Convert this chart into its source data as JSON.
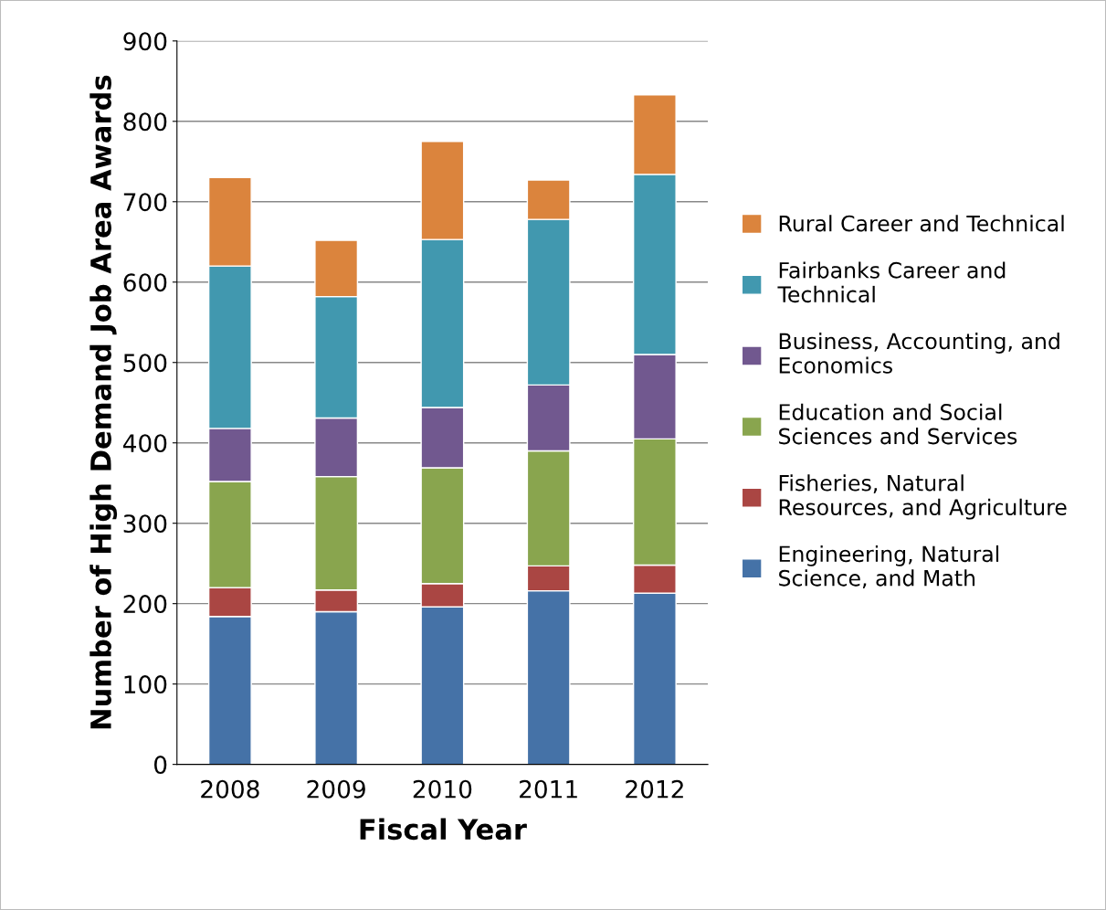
{
  "chart_data": {
    "type": "bar",
    "stacked": true,
    "xlabel": "Fiscal Year",
    "ylabel": "Number of High Demand Job Area Awards",
    "categories": [
      "2008",
      "2009",
      "2010",
      "2011",
      "2012"
    ],
    "series": [
      {
        "name": "Engineering, Natural\nScience, and Math",
        "color": "#4572a7",
        "values": [
          184,
          190,
          196,
          216,
          213
        ]
      },
      {
        "name": "Fisheries, Natural\nResources, and Agriculture",
        "color": "#aa4643",
        "values": [
          36,
          27,
          29,
          31,
          35
        ]
      },
      {
        "name": "Education and Social\nSciences and Services",
        "color": "#89a54e",
        "values": [
          132,
          141,
          144,
          143,
          157
        ]
      },
      {
        "name": "Business, Accounting, and\nEconomics",
        "color": "#71588f",
        "values": [
          66,
          73,
          75,
          82,
          105
        ]
      },
      {
        "name": "Fairbanks Career and\nTechnical",
        "color": "#4198af",
        "values": [
          202,
          151,
          209,
          206,
          224
        ]
      },
      {
        "name": "Rural Career and Technical",
        "color": "#db843d",
        "values": [
          110,
          70,
          122,
          49,
          99
        ]
      }
    ],
    "ylim": [
      0,
      900
    ],
    "yticks": [
      0,
      100,
      200,
      300,
      400,
      500,
      600,
      700,
      800,
      900
    ],
    "grid": "y",
    "legend": "right"
  }
}
